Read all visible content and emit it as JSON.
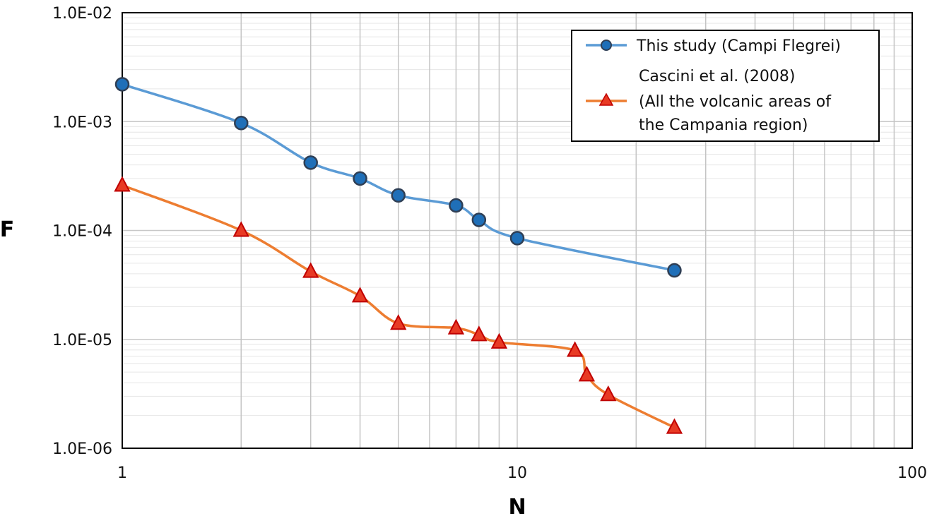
{
  "chart_data": {
    "type": "line",
    "xlabel": "N",
    "ylabel": "F",
    "xscale": "log",
    "yscale": "log",
    "xlim": [
      1,
      100
    ],
    "ylim": [
      1e-06,
      0.01
    ],
    "grid": true,
    "legend_position": "top-right",
    "x_tick_labels": [
      {
        "value": 1,
        "label": "1"
      },
      {
        "value": 10,
        "label": "10"
      },
      {
        "value": 100,
        "label": "100"
      }
    ],
    "y_tick_labels": [
      {
        "value": 0.01,
        "label": "1.0E-02"
      },
      {
        "value": 0.001,
        "label": "1.0E-03"
      },
      {
        "value": 0.0001,
        "label": "1.0E-04"
      },
      {
        "value": 1e-05,
        "label": "1.0E-05"
      },
      {
        "value": 1e-06,
        "label": "1.0E-06"
      }
    ],
    "series": [
      {
        "name": "This study (Campi Flegrei)",
        "legend_lines": [
          "This study (Campi Flegrei)"
        ],
        "color": "#5b9bd5",
        "marker": "circle",
        "marker_fill": "#1f6fb8",
        "marker_stroke": "#2f3f55",
        "x": [
          1,
          2,
          3,
          4,
          5,
          7,
          8,
          10,
          25
        ],
        "y": [
          0.0022,
          0.00097,
          0.00042,
          0.0003,
          0.00021,
          0.00017,
          0.000125,
          8.5e-05,
          4.3e-05
        ]
      },
      {
        "name": "Cascini et al. (2008) (All the volcanic areas of the Campania region)",
        "legend_lines": [
          "Cascini et al. (2008)",
          "(All the volcanic areas of",
          "the Campania region)"
        ],
        "color": "#ed7d31",
        "marker": "triangle",
        "marker_fill": "#e83a24",
        "marker_stroke": "#c00000",
        "x": [
          1,
          2,
          3,
          4,
          5,
          7,
          8,
          9,
          14,
          15,
          17,
          25
        ],
        "y": [
          0.00026,
          0.0001,
          4.2e-05,
          2.5e-05,
          1.4e-05,
          1.27e-05,
          1.1e-05,
          9.4e-06,
          7.9e-06,
          4.7e-06,
          3.1e-06,
          1.55e-06
        ]
      }
    ]
  }
}
